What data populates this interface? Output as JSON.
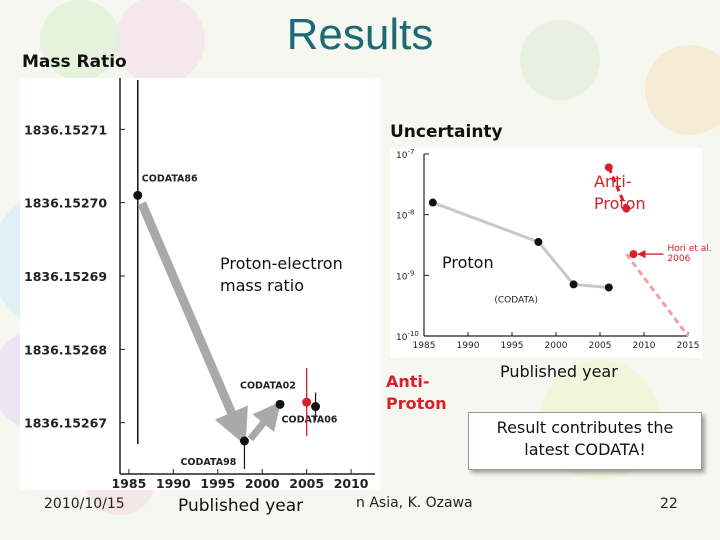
{
  "slide": {
    "title": "Results",
    "mass_ratio_label": "Mass Ratio",
    "uncertainty_label": "Uncertainty",
    "proton_electron_label_1": "Proton-electron",
    "proton_electron_label_2": "mass ratio",
    "proton_label": "Proton",
    "antiproton_top_1": "Anti-",
    "antiproton_top_2": "Proton",
    "antiproton_mid_1": "Anti-",
    "antiproton_mid_2": "Proton",
    "published_year_right": "Published year",
    "published_year_bottom": "Published year",
    "note_line1": "Result contributes  the",
    "note_line2": "latest CODATA!",
    "footer_date": "2010/10/15",
    "footer_center": "n Asia, K. Ozawa",
    "footer_page": "22"
  },
  "chart_data": [
    {
      "type": "scatter",
      "title": "",
      "xlabel": "",
      "ylabel": "",
      "xlim": [
        1984,
        2011
      ],
      "ylim": [
        1836.152663,
        1836.152717
      ],
      "x_ticks": [
        "1985",
        "1990",
        "1995",
        "2000",
        "2005",
        "2010"
      ],
      "y_ticks": [
        "1836.15271",
        "1836.15270",
        "1836.15269",
        "1836.15268",
        "1836.15267"
      ],
      "series": [
        {
          "name": "",
          "points": [
            {
              "x": 1986,
              "y": 1836.152701,
              "label": "CODATA86"
            },
            {
              "x": 1998,
              "y": 1836.1526675,
              "label": "CODATA98"
            },
            {
              "x": 2002,
              "y": 1836.1526725,
              "label": "CODATA02"
            },
            {
              "x": 2006,
              "y": 1836.1526722,
              "label": "CODATA06"
            }
          ]
        },
        {
          "name": "",
          "points": [
            {
              "x": 2005,
              "y": 1836.1526728
            }
          ]
        }
      ],
      "grid": false
    },
    {
      "type": "line",
      "title": "",
      "xlabel": "",
      "ylabel": "",
      "xlim": [
        1985,
        2015
      ],
      "ylim_log10": [
        -10,
        -7
      ],
      "log_y": true,
      "x_ticks": [
        "1985",
        "1990",
        "1995",
        "2000",
        "2005",
        "2010",
        "2015"
      ],
      "y_ticks": [
        "10-7",
        "10-8",
        "10-9",
        "10-10"
      ],
      "series": [
        {
          "name": "Proton (CODATA)",
          "x": [
            1986,
            1998,
            2002,
            2006
          ],
          "log10_y": [
            -7.8,
            -8.45,
            -9.15,
            -9.2
          ]
        },
        {
          "name": "",
          "x": [
            2006,
            2008
          ],
          "log10_y": [
            -7.22,
            -7.9
          ]
        },
        {
          "name": "Hori et al. 2006",
          "x": [
            2006
          ],
          "log10_y": [
            -8.65
          ]
        }
      ],
      "annotations": [
        "(CODATA)",
        "Hori et al.",
        "2006"
      ],
      "grid": false
    }
  ],
  "colors": {
    "title": "#1e6a74",
    "red": "#d8202a",
    "gray_arrow": "#a9a9a9",
    "gray_line": "#c8c8c8",
    "pink_dash": "#f2a0a8"
  }
}
